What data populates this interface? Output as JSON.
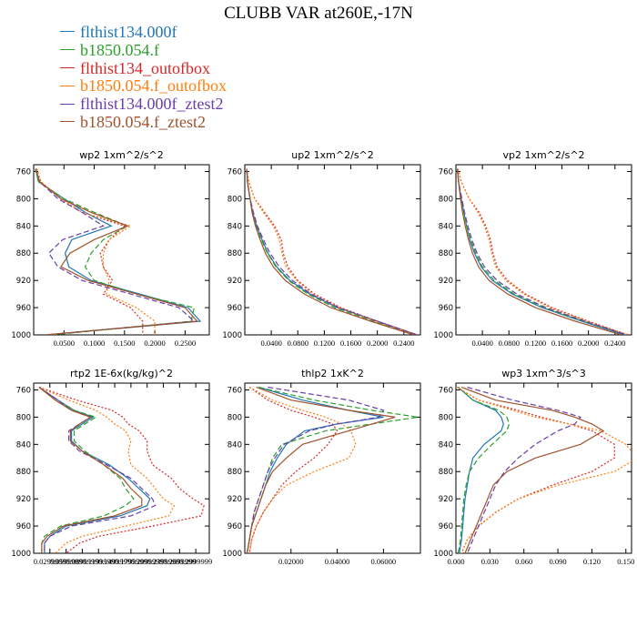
{
  "title": "CLUBB VAR at260E,-17N",
  "legend": [
    {
      "label": "flthist134.000f",
      "color": "#1f77b4"
    },
    {
      "label": "b1850.054.f",
      "color": "#2ca02c"
    },
    {
      "label": "flthist134_outofbox",
      "color": "#d62728"
    },
    {
      "label": "b1850.054.f_outofbox",
      "color": "#ff7f0e"
    },
    {
      "label": "flthist134.000f_ztest2",
      "color": "#6a3fa8"
    },
    {
      "label": "b1850.054.f_ztest2",
      "color": "#a0522d"
    }
  ],
  "series_dash": [
    "solid",
    "dash",
    "dot",
    "dot",
    "dash",
    "solid"
  ],
  "chart_data": [
    {
      "type": "line",
      "title": "wp2  1xm^2/s^2",
      "xlim": [
        0,
        0.29
      ],
      "ylim": [
        1000,
        750
      ],
      "xticks": [
        0.05,
        0.1,
        0.15,
        0.2,
        0.25
      ],
      "xticklabels": [
        "0.0500",
        "0.1000",
        "0.1500",
        "0.2000",
        "0.2500"
      ],
      "yticks": [
        760,
        800,
        840,
        880,
        920,
        960,
        1000
      ],
      "y": [
        756,
        775,
        800,
        820,
        840,
        860,
        880,
        900,
        920,
        940,
        960,
        980,
        1000
      ],
      "series": [
        {
          "values": [
            0.003,
            0.008,
            0.05,
            0.085,
            0.128,
            0.063,
            0.052,
            0.058,
            0.095,
            0.175,
            0.255,
            0.275,
            0.02
          ]
        },
        {
          "values": [
            0.003,
            0.008,
            0.05,
            0.1,
            0.155,
            0.115,
            0.095,
            0.085,
            0.1,
            0.17,
            0.265,
            0.26,
            0.03
          ]
        },
        {
          "values": [
            0.005,
            0.012,
            0.045,
            0.08,
            0.15,
            0.125,
            0.11,
            0.115,
            0.13,
            0.115,
            0.16,
            0.18,
            0.18
          ]
        },
        {
          "values": [
            0.005,
            0.012,
            0.045,
            0.08,
            0.16,
            0.125,
            0.115,
            0.115,
            0.125,
            0.12,
            0.17,
            0.2,
            0.2
          ]
        },
        {
          "values": [
            0.003,
            0.01,
            0.04,
            0.08,
            0.115,
            0.048,
            0.025,
            0.04,
            0.08,
            0.16,
            0.24,
            0.265,
            0.02
          ]
        },
        {
          "values": [
            0.003,
            0.01,
            0.045,
            0.095,
            0.155,
            0.1,
            0.06,
            0.045,
            0.09,
            0.17,
            0.25,
            0.27,
            0.02
          ]
        }
      ]
    },
    {
      "type": "line",
      "title": "up2  1xm^2/s^2",
      "xlim": [
        0,
        0.265
      ],
      "ylim": [
        1000,
        750
      ],
      "xticks": [
        0.04,
        0.08,
        0.12,
        0.16,
        0.2,
        0.24
      ],
      "xticklabels": [
        "0.0400",
        "0.0800",
        "0.1200",
        "0.1600",
        "0.2000",
        "0.2400"
      ],
      "yticks": [
        760,
        800,
        840,
        880,
        920,
        960,
        1000
      ],
      "y": [
        756,
        775,
        800,
        820,
        840,
        860,
        880,
        900,
        920,
        940,
        960,
        980,
        1000
      ],
      "series": [
        {
          "values": [
            0.003,
            0.004,
            0.008,
            0.012,
            0.018,
            0.026,
            0.035,
            0.048,
            0.068,
            0.098,
            0.14,
            0.2,
            0.26
          ]
        },
        {
          "values": [
            0.003,
            0.004,
            0.008,
            0.012,
            0.017,
            0.025,
            0.034,
            0.047,
            0.066,
            0.095,
            0.136,
            0.195,
            0.255
          ]
        },
        {
          "values": [
            0.003,
            0.006,
            0.015,
            0.03,
            0.045,
            0.055,
            0.058,
            0.065,
            0.08,
            0.105,
            0.145,
            0.2,
            0.26
          ]
        },
        {
          "values": [
            0.003,
            0.006,
            0.015,
            0.028,
            0.043,
            0.052,
            0.056,
            0.062,
            0.078,
            0.102,
            0.142,
            0.198,
            0.26
          ]
        },
        {
          "values": [
            0.003,
            0.004,
            0.008,
            0.013,
            0.019,
            0.028,
            0.038,
            0.052,
            0.072,
            0.1,
            0.142,
            0.2,
            0.26
          ]
        },
        {
          "values": [
            0.003,
            0.004,
            0.008,
            0.011,
            0.016,
            0.023,
            0.031,
            0.043,
            0.061,
            0.09,
            0.13,
            0.19,
            0.255
          ]
        }
      ]
    },
    {
      "type": "line",
      "title": "vp2  1xm^2/s^2",
      "xlim": [
        0,
        0.265
      ],
      "ylim": [
        1000,
        750
      ],
      "xticks": [
        0.04,
        0.08,
        0.12,
        0.16,
        0.2,
        0.24
      ],
      "xticklabels": [
        "0.0400",
        "0.0800",
        "0.1200",
        "0.1600",
        "0.2000",
        "0.2400"
      ],
      "yticks": [
        760,
        800,
        840,
        880,
        920,
        960,
        1000
      ],
      "y": [
        756,
        775,
        800,
        820,
        840,
        860,
        880,
        900,
        920,
        940,
        960,
        980,
        1000
      ],
      "series": [
        {
          "values": [
            0.002,
            0.004,
            0.008,
            0.012,
            0.016,
            0.021,
            0.028,
            0.038,
            0.055,
            0.085,
            0.13,
            0.19,
            0.255
          ]
        },
        {
          "values": [
            0.002,
            0.004,
            0.008,
            0.012,
            0.016,
            0.022,
            0.03,
            0.04,
            0.058,
            0.088,
            0.133,
            0.193,
            0.258
          ]
        },
        {
          "values": [
            0.003,
            0.008,
            0.02,
            0.035,
            0.045,
            0.052,
            0.056,
            0.062,
            0.078,
            0.105,
            0.145,
            0.2,
            0.26
          ]
        },
        {
          "values": [
            0.003,
            0.008,
            0.02,
            0.033,
            0.043,
            0.05,
            0.054,
            0.06,
            0.075,
            0.102,
            0.142,
            0.198,
            0.26
          ]
        },
        {
          "values": [
            0.002,
            0.004,
            0.009,
            0.013,
            0.018,
            0.024,
            0.032,
            0.043,
            0.062,
            0.092,
            0.136,
            0.195,
            0.258
          ]
        },
        {
          "values": [
            0.002,
            0.004,
            0.007,
            0.01,
            0.014,
            0.019,
            0.025,
            0.034,
            0.05,
            0.078,
            0.12,
            0.18,
            0.25
          ]
        }
      ]
    },
    {
      "type": "line",
      "title": "rtp2  1E-6x(kg/kg)^2",
      "xlim": [
        0,
        0.325
      ],
      "ylim": [
        1000,
        750
      ],
      "xticks": [
        0.03,
        0.06,
        0.09,
        0.12,
        0.15,
        0.18,
        0.21,
        0.24,
        0.27,
        0.3
      ],
      "xticklabels": [
        "0.0299999",
        "0.0599999",
        "0.0899999",
        "0.1199999",
        "0.1499999",
        "0.1799999",
        "0.2099999",
        "0.2399999",
        "0.2699999",
        "0.2999999"
      ],
      "yticks": [
        760,
        800,
        840,
        880,
        920,
        960,
        1000
      ],
      "y": [
        756,
        775,
        790,
        800,
        810,
        820,
        835,
        850,
        870,
        890,
        905,
        920,
        930,
        945,
        960,
        975,
        985,
        1000
      ],
      "series": [
        {
          "values": [
            0.01,
            0.045,
            0.075,
            0.11,
            0.09,
            0.07,
            0.07,
            0.09,
            0.14,
            0.175,
            0.195,
            0.215,
            0.21,
            0.16,
            0.06,
            0.03,
            0.02,
            0.02
          ]
        },
        {
          "values": [
            0.01,
            0.045,
            0.075,
            0.115,
            0.095,
            0.075,
            0.075,
            0.095,
            0.13,
            0.16,
            0.17,
            0.185,
            0.17,
            0.13,
            0.05,
            0.02,
            0.015,
            0.015
          ]
        },
        {
          "values": [
            0.01,
            0.08,
            0.145,
            0.165,
            0.175,
            0.195,
            0.21,
            0.21,
            0.22,
            0.255,
            0.27,
            0.295,
            0.315,
            0.31,
            0.22,
            0.12,
            0.085,
            0.06
          ]
        },
        {
          "values": [
            0.01,
            0.065,
            0.115,
            0.135,
            0.15,
            0.17,
            0.18,
            0.175,
            0.18,
            0.21,
            0.225,
            0.24,
            0.26,
            0.25,
            0.17,
            0.09,
            0.06,
            0.04
          ]
        },
        {
          "values": [
            0.01,
            0.045,
            0.07,
            0.105,
            0.085,
            0.065,
            0.065,
            0.085,
            0.135,
            0.18,
            0.2,
            0.22,
            0.225,
            0.18,
            0.07,
            0.03,
            0.02,
            0.02
          ]
        },
        {
          "values": [
            0.01,
            0.04,
            0.07,
            0.105,
            0.085,
            0.068,
            0.068,
            0.09,
            0.13,
            0.165,
            0.18,
            0.2,
            0.2,
            0.15,
            0.055,
            0.025,
            0.015,
            0.015
          ]
        }
      ]
    },
    {
      "type": "line",
      "title": "thlp2  1xK^2",
      "xlim": [
        0,
        0.076
      ],
      "ylim": [
        1000,
        750
      ],
      "xticks": [
        0.02,
        0.04,
        0.06
      ],
      "xticklabels": [
        "0.02000",
        "0.04000",
        "0.06000"
      ],
      "yticks": [
        760,
        800,
        840,
        880,
        920,
        960,
        1000
      ],
      "y": [
        756,
        775,
        790,
        800,
        810,
        820,
        840,
        860,
        880,
        900,
        920,
        940,
        960,
        980,
        1000
      ],
      "series": [
        {
          "values": [
            0.006,
            0.025,
            0.045,
            0.06,
            0.04,
            0.026,
            0.018,
            0.014,
            0.011,
            0.009,
            0.007,
            0.005,
            0.003,
            0.002,
            0.001
          ]
        },
        {
          "values": [
            0.006,
            0.03,
            0.055,
            0.075,
            0.055,
            0.035,
            0.016,
            0.012,
            0.01,
            0.008,
            0.006,
            0.004,
            0.003,
            0.002,
            0.001
          ]
        },
        {
          "values": [
            0.002,
            0.01,
            0.02,
            0.03,
            0.038,
            0.04,
            0.036,
            0.03,
            0.022,
            0.016,
            0.012,
            0.008,
            0.005,
            0.003,
            0.002
          ]
        },
        {
          "values": [
            0.002,
            0.012,
            0.025,
            0.035,
            0.042,
            0.046,
            0.048,
            0.045,
            0.03,
            0.018,
            0.012,
            0.008,
            0.005,
            0.003,
            0.002
          ]
        },
        {
          "values": [
            0.01,
            0.045,
            0.06,
            0.058,
            0.04,
            0.028,
            0.017,
            0.013,
            0.01,
            0.008,
            0.006,
            0.004,
            0.003,
            0.002,
            0.001
          ]
        },
        {
          "values": [
            0.005,
            0.02,
            0.045,
            0.065,
            0.055,
            0.045,
            0.025,
            0.018,
            0.012,
            0.009,
            0.007,
            0.005,
            0.003,
            0.002,
            0.001
          ]
        }
      ]
    },
    {
      "type": "line",
      "title": "wp3  1xm^3/s^3",
      "xlim": [
        0,
        0.155
      ],
      "ylim": [
        1000,
        750
      ],
      "xticks": [
        0,
        0.03,
        0.06,
        0.09,
        0.12,
        0.15
      ],
      "xticklabels": [
        "0.000",
        "0.030",
        "0.060",
        "0.090",
        "0.120",
        "0.150"
      ],
      "yticks": [
        760,
        800,
        840,
        880,
        920,
        960,
        1000
      ],
      "y": [
        756,
        775,
        790,
        800,
        810,
        820,
        840,
        860,
        880,
        900,
        920,
        940,
        960,
        980,
        1000
      ],
      "series": [
        {
          "values": [
            0.002,
            0.015,
            0.035,
            0.04,
            0.042,
            0.04,
            0.025,
            0.015,
            0.012,
            0.01,
            0.008,
            0.007,
            0.006,
            0.005,
            0.003
          ]
        },
        {
          "values": [
            0.002,
            0.015,
            0.038,
            0.045,
            0.047,
            0.045,
            0.032,
            0.02,
            0.012,
            0.009,
            0.007,
            0.006,
            0.005,
            0.004,
            0.002
          ]
        },
        {
          "values": [
            0.001,
            0.02,
            0.055,
            0.075,
            0.1,
            0.12,
            0.14,
            0.14,
            0.12,
            0.085,
            0.055,
            0.035,
            0.02,
            0.01,
            0.005
          ]
        },
        {
          "values": [
            0.001,
            0.02,
            0.05,
            0.07,
            0.1,
            0.128,
            0.15,
            0.16,
            0.14,
            0.09,
            0.055,
            0.035,
            0.02,
            0.01,
            0.005
          ]
        },
        {
          "values": [
            0.01,
            0.05,
            0.09,
            0.11,
            0.105,
            0.09,
            0.07,
            0.055,
            0.043,
            0.035,
            0.03,
            0.025,
            0.02,
            0.015,
            0.01
          ]
        },
        {
          "values": [
            0.005,
            0.035,
            0.085,
            0.105,
            0.12,
            0.13,
            0.11,
            0.07,
            0.045,
            0.033,
            0.028,
            0.023,
            0.018,
            0.013,
            0.008
          ]
        }
      ]
    }
  ]
}
